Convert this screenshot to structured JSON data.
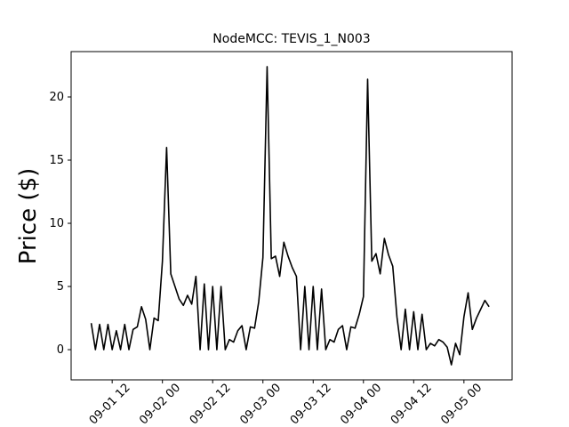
{
  "chart_data": {
    "type": "line",
    "title": "NodeMCC: TEVIS_1_N003",
    "y_label": "Price ($)",
    "x": [
      7,
      8,
      9,
      10,
      11,
      12,
      13,
      14,
      15,
      16,
      17,
      18,
      19,
      20,
      21,
      22,
      23,
      24,
      25,
      26,
      27,
      28,
      29,
      30,
      31,
      32,
      33,
      34,
      35,
      36,
      37,
      38,
      39,
      40,
      41,
      42,
      43,
      44,
      45,
      46,
      47,
      48,
      49,
      50,
      51,
      52,
      53,
      54,
      55,
      56,
      57,
      58,
      59,
      60,
      61,
      62,
      63,
      64,
      65,
      66,
      67,
      68,
      69,
      70,
      71,
      72,
      73,
      74,
      75,
      76,
      77,
      78,
      79,
      80,
      81,
      82,
      83,
      84,
      85,
      86,
      87,
      88,
      89,
      90,
      91,
      92,
      93,
      94,
      95,
      96,
      97,
      98,
      99,
      100,
      101,
      102
    ],
    "series": [
      {
        "name": "Price",
        "color": "#000000",
        "values": [
          2.1,
          0,
          2.0,
          0,
          2.0,
          0,
          1.5,
          0,
          2.0,
          0,
          1.6,
          1.8,
          3.4,
          2.4,
          0,
          2.5,
          2.3,
          7.0,
          16.0,
          6.0,
          5.0,
          4.0,
          3.5,
          4.3,
          3.6,
          5.8,
          0,
          5.2,
          0,
          5.0,
          0,
          5.0,
          0,
          0.8,
          0.6,
          1.5,
          1.9,
          0,
          1.8,
          1.7,
          3.8,
          7.3,
          22.4,
          7.2,
          7.4,
          5.8,
          8.5,
          7.4,
          6.5,
          5.8,
          0,
          5.0,
          0,
          5.0,
          0,
          4.8,
          0,
          0.8,
          0.6,
          1.6,
          1.9,
          0,
          1.8,
          1.7,
          2.8,
          4.2,
          21.4,
          7.0,
          7.6,
          6.0,
          8.8,
          7.5,
          6.6,
          2.6,
          0,
          3.2,
          0,
          3.0,
          0,
          2.8,
          0,
          0.5,
          0.3,
          0.8,
          0.6,
          0.2,
          -1.2,
          0.5,
          -0.4,
          2.6,
          4.5,
          1.6,
          2.5,
          3.2,
          3.9,
          3.4
        ]
      }
    ],
    "xlim": [
      2.2,
      107.5
    ],
    "ylim": [
      -2.39,
      23.59
    ],
    "xticks": [
      {
        "value": 12,
        "label": "09-01 12"
      },
      {
        "value": 24,
        "label": "09-02 00"
      },
      {
        "value": 36,
        "label": "09-02 12"
      },
      {
        "value": 48,
        "label": "09-03 00"
      },
      {
        "value": 60,
        "label": "09-03 12"
      },
      {
        "value": 72,
        "label": "09-04 00"
      },
      {
        "value": 84,
        "label": "09-04 12"
      },
      {
        "value": 96,
        "label": "09-05 00"
      }
    ],
    "yticks": [
      0,
      5,
      10,
      15,
      20
    ],
    "grid": false
  }
}
